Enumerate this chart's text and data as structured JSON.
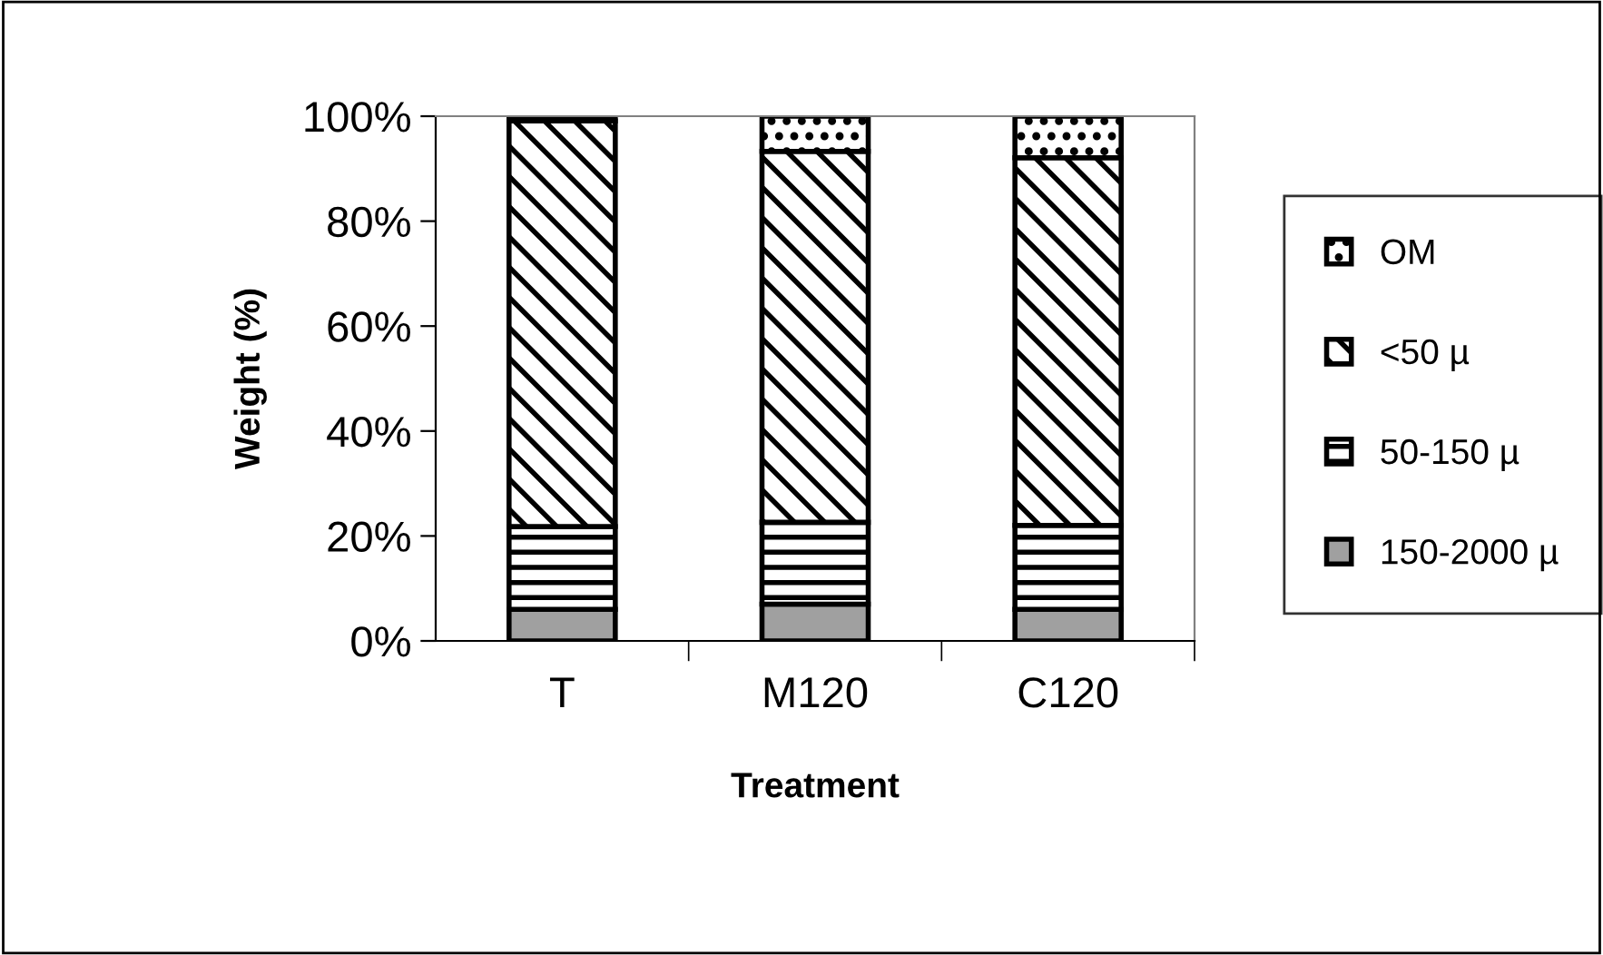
{
  "chart_data": {
    "type": "bar",
    "stacked": true,
    "xlabel": "Treatment",
    "ylabel": "Weight (%)",
    "categories": [
      "T",
      "M120",
      "C120"
    ],
    "series": [
      {
        "name": "150-2000 µ",
        "color": "#a0a0a0",
        "values": [
          6.0,
          7.0,
          6.0
        ]
      },
      {
        "name": "50-150 µ",
        "color": "#000000",
        "values": [
          15.8,
          15.6,
          16.0
        ]
      },
      {
        "name": "<50 µ",
        "color": "#000000",
        "values": [
          77.3,
          70.7,
          70.1
        ]
      },
      {
        "name": "OM",
        "color": "#000000",
        "values": [
          0.9,
          6.7,
          7.9
        ]
      }
    ],
    "ylim": [
      0,
      100
    ],
    "yticks": [
      {
        "value": 0,
        "label": "0%"
      },
      {
        "value": 20,
        "label": "20%"
      },
      {
        "value": 40,
        "label": "40%"
      },
      {
        "value": 60,
        "label": "60%"
      },
      {
        "value": 80,
        "label": "80%"
      },
      {
        "value": 100,
        "label": "100%"
      }
    ],
    "grid": false,
    "legend": "right"
  }
}
